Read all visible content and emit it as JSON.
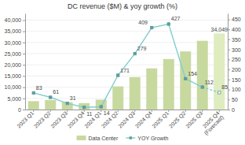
{
  "chart_data": {
    "type": "bar",
    "title": "DC revenue ($M) & yoy growth (%)",
    "categories": [
      "2023 Q1",
      "2023 Q2",
      "2023 Q3",
      "2023 Q4",
      "2024 Q1",
      "2024 Q2",
      "2024 Q3",
      "2024 Q4",
      "2025 Q1",
      "2025 Q2",
      "2025 Q3",
      "2025 Q4\n(Forecast)"
    ],
    "series": [
      {
        "name": "Data Center",
        "type": "bar",
        "colors": [
          "#c8d9a0",
          "#c8d9a0",
          "#c8d9a0",
          "#c8d9a0",
          "#c8d9a0",
          "#c8d9a0",
          "#c8d9a0",
          "#c8d9a0",
          "#c8d9a0",
          "#c8d9a0",
          "#c8d9a0",
          "#deecc0"
        ],
        "values": [
          3750,
          4280,
          3300,
          2870,
          4430,
          10350,
          14510,
          18400,
          22600,
          26000,
          30760,
          34049
        ],
        "value_labels": [
          null,
          null,
          null,
          null,
          null,
          null,
          null,
          null,
          null,
          null,
          null,
          "34,049"
        ]
      },
      {
        "name": "YOY Growth",
        "type": "line",
        "axis": "y2",
        "color": "#7ecece",
        "marker": "square",
        "data_labels": true,
        "values": [
          83,
          61,
          31,
          11,
          14,
          171,
          279,
          409,
          427,
          154,
          112,
          85
        ]
      }
    ],
    "ylim": [
      0,
      43000
    ],
    "yticks": [
      0,
      {
        "value": 5000,
        "label": "5,000"
      },
      {
        "value": 10000,
        "label": "10,000"
      },
      {
        "value": 15000,
        "label": "15,000"
      },
      {
        "value": 20000,
        "label": "20,000"
      },
      {
        "value": 25000,
        "label": "25,000"
      },
      {
        "value": 30000,
        "label": "30,000"
      },
      {
        "value": 35000,
        "label": "35,000"
      },
      {
        "value": 40000,
        "label": "40,000"
      }
    ],
    "y2lim": [
      0,
      480
    ],
    "y2ticks": [
      0,
      50,
      100,
      150,
      200,
      250,
      300,
      350,
      400,
      450
    ],
    "grid": true,
    "legend": "bottom"
  }
}
